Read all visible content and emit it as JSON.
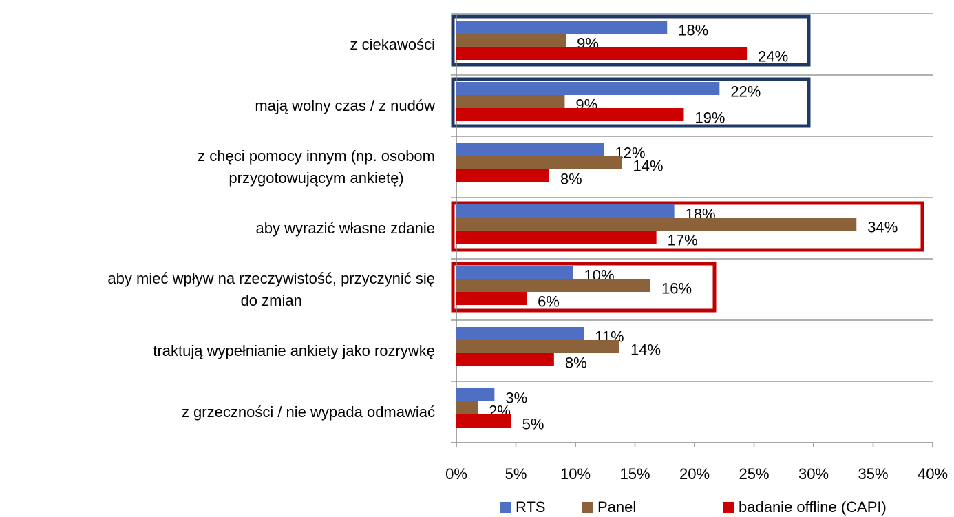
{
  "chart_data": {
    "type": "bar",
    "orientation": "horizontal",
    "categories": [
      "z ciekawości",
      "mają wolny czas / z nudów",
      "z chęci pomocy innym (np. osobom\nprzygotowującym ankietę)",
      "aby wyrazić własne zdanie",
      "aby mieć wpływ na rzeczywistość, przyczynić się\ndo zmian",
      "traktują wypełnianie ankiety jako rozrywkę",
      "z grzeczności / nie wypada odmawiać"
    ],
    "series": [
      {
        "name": "RTS",
        "color": "#4f6fc4",
        "values": [
          17.7,
          22.1,
          12.4,
          18.3,
          9.8,
          10.7,
          3.2
        ],
        "value_labels": [
          "18%",
          "22%",
          "12%",
          "18%",
          "10%",
          "11%",
          "3%"
        ]
      },
      {
        "name": "Panel",
        "color": "#8b6239",
        "values": [
          9.2,
          9.1,
          13.9,
          33.6,
          16.3,
          13.7,
          1.8
        ],
        "value_labels": [
          "9%",
          "9%",
          "14%",
          "34%",
          "16%",
          "14%",
          "2%"
        ]
      },
      {
        "name": "badanie offline (CAPI)",
        "color": "#cc0000",
        "values": [
          24.4,
          19.1,
          7.8,
          16.8,
          5.9,
          8.2,
          4.6
        ],
        "value_labels": [
          "24%",
          "19%",
          "8%",
          "17%",
          "6%",
          "8%",
          "5%"
        ]
      }
    ],
    "xlim": [
      0,
      40
    ],
    "xticks": [
      {
        "value": 0,
        "label": "0%"
      },
      {
        "value": 5,
        "label": "5%"
      },
      {
        "value": 10,
        "label": "10%"
      },
      {
        "value": 15,
        "label": "15%"
      },
      {
        "value": 20,
        "label": "20%"
      },
      {
        "value": 25,
        "label": "25%"
      },
      {
        "value": 30,
        "label": "30%"
      },
      {
        "value": 35,
        "label": "35%"
      },
      {
        "value": 40,
        "label": "40%"
      }
    ],
    "legend": "bottom"
  }
}
